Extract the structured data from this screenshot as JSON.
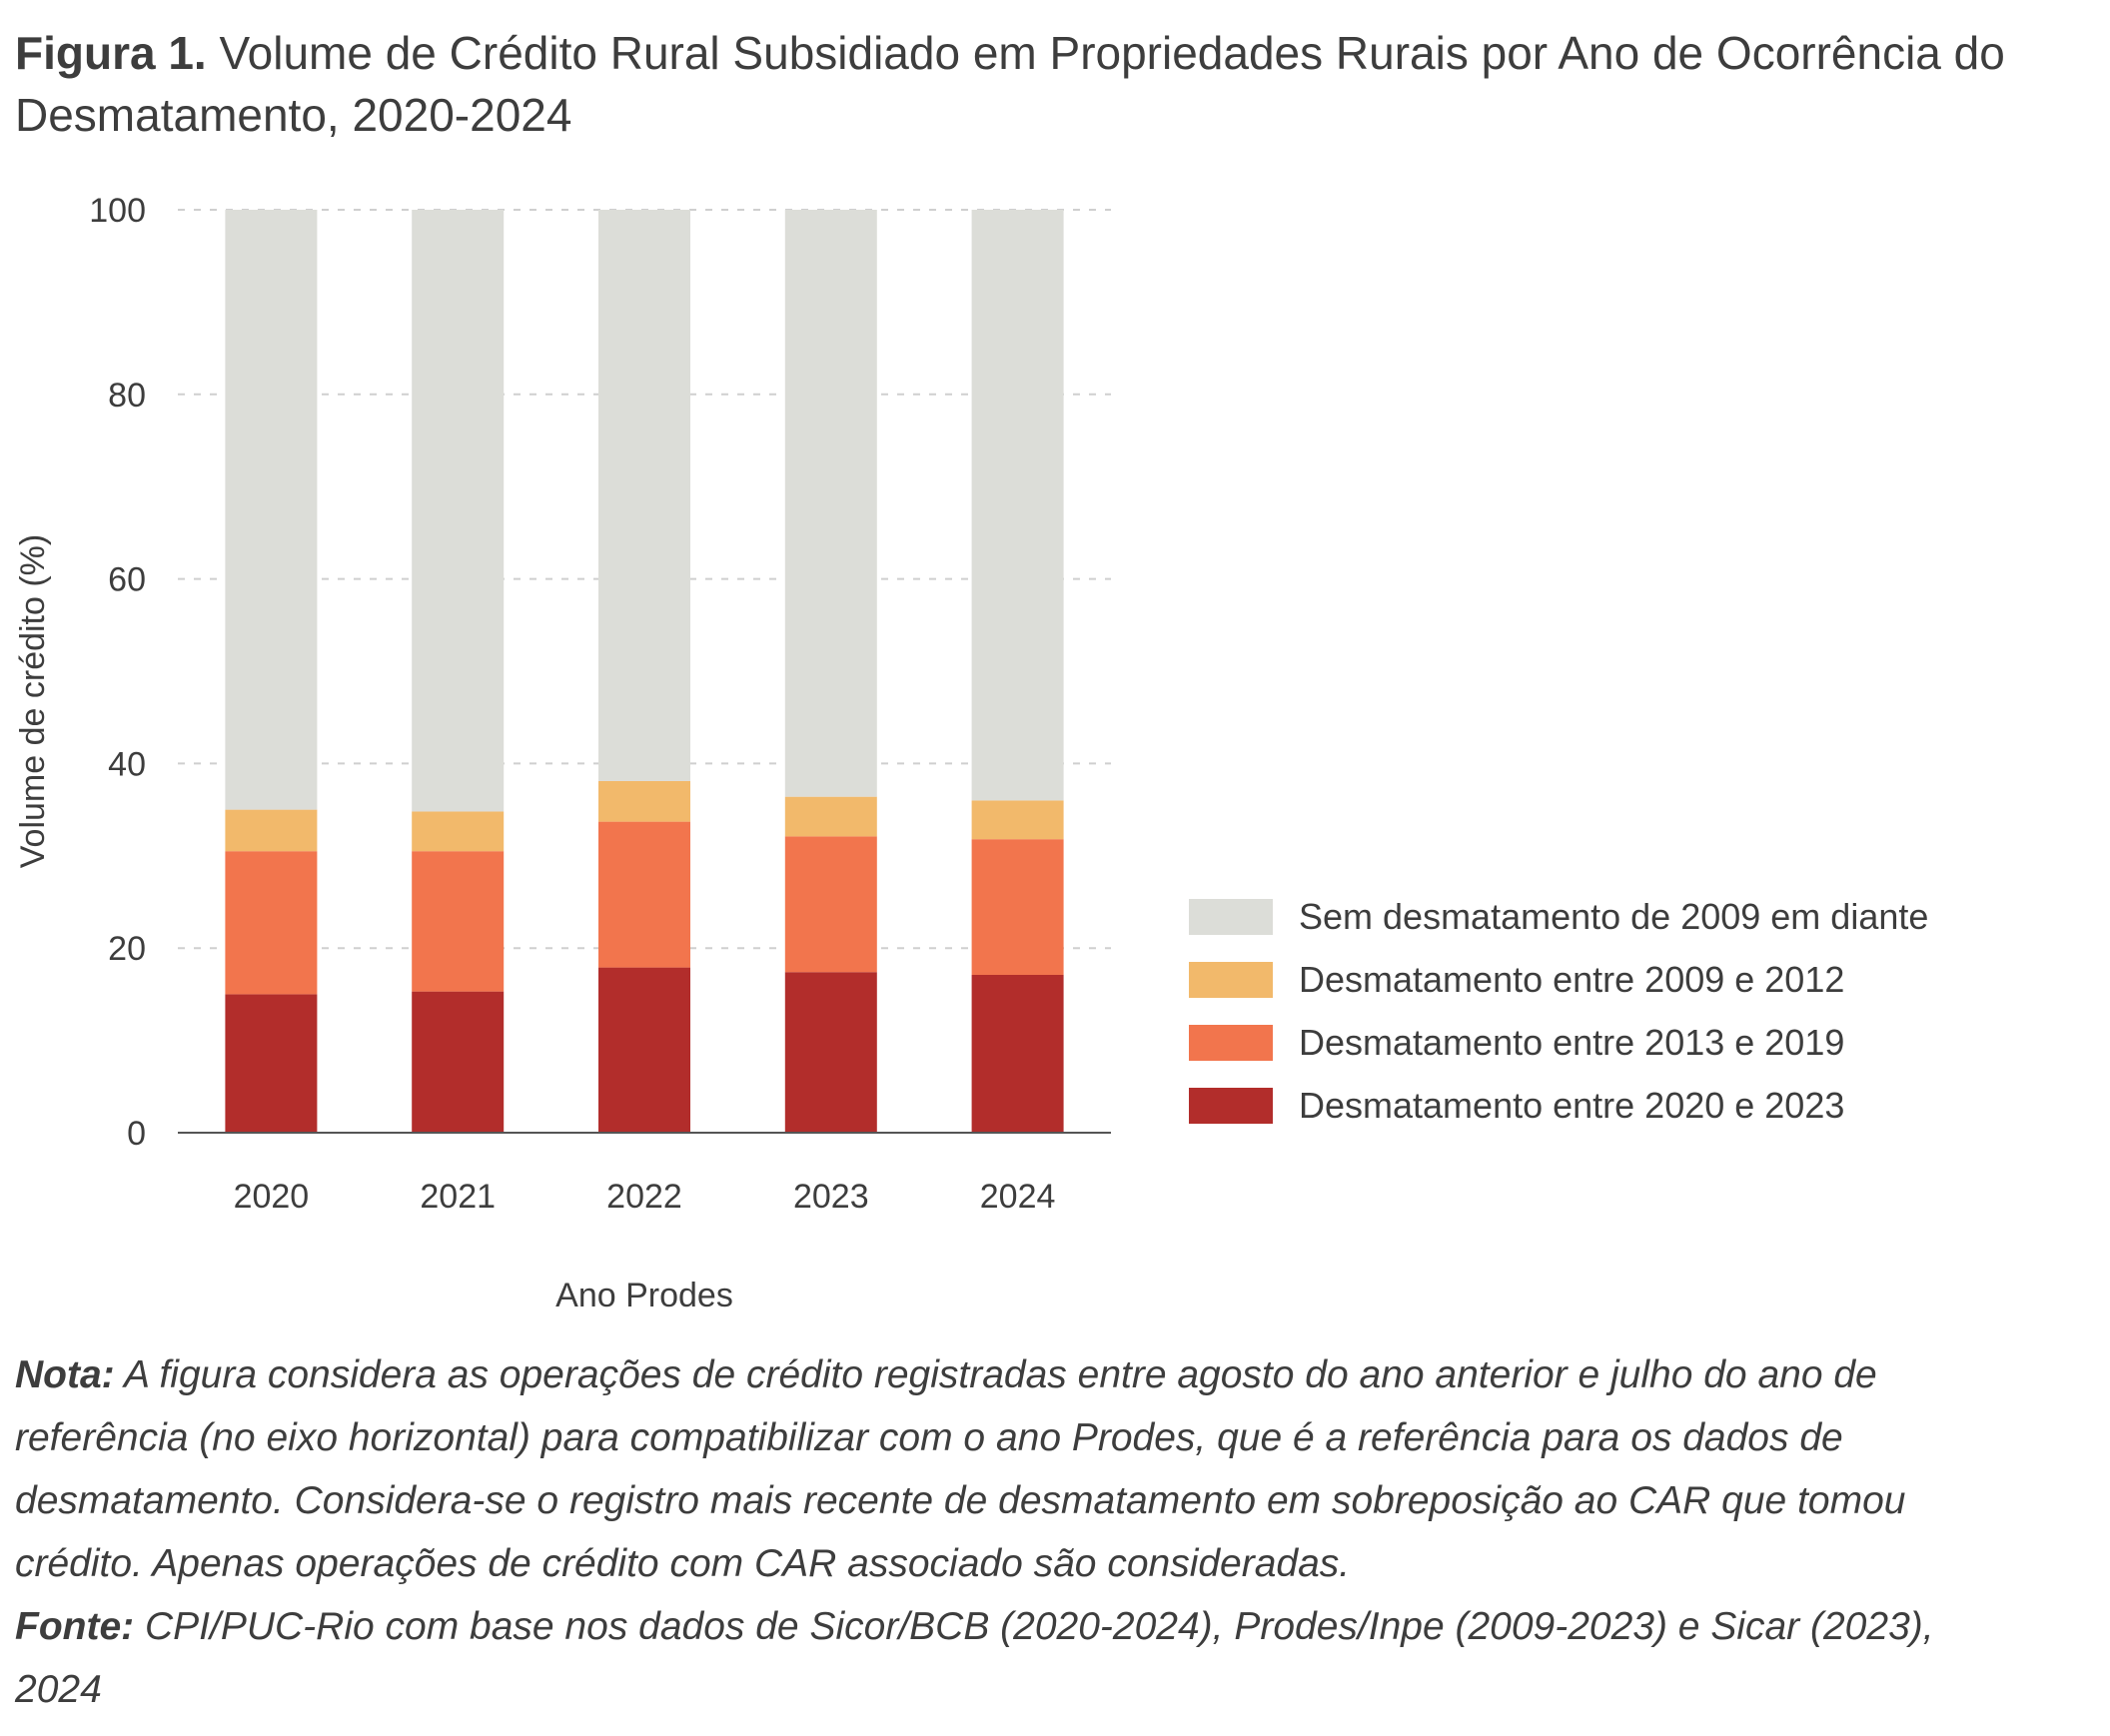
{
  "title": {
    "lead": "Figura 1.",
    "text": "Volume de Crédito Rural Subsidiado em Propriedades Rurais por Ano de Ocorrência do Desmatamento, 2020-2024"
  },
  "chart_data": {
    "type": "bar",
    "stacked": true,
    "categories": [
      "2020",
      "2021",
      "2022",
      "2023",
      "2024"
    ],
    "series": [
      {
        "name": "Desmatamento entre 2020 e 2023",
        "color": "#b22d2b",
        "values": [
          15.0,
          15.3,
          17.9,
          17.4,
          17.1
        ]
      },
      {
        "name": "Desmatamento entre 2013 e 2019",
        "color": "#f2754d",
        "values": [
          15.5,
          15.2,
          15.8,
          14.7,
          14.7
        ]
      },
      {
        "name": "Desmatamento entre 2009 e 2012",
        "color": "#f2b96b",
        "values": [
          4.5,
          4.3,
          4.4,
          4.3,
          4.2
        ]
      },
      {
        "name": "Sem desmatamento de 2009 em diante",
        "color": "#dcddd8",
        "values": [
          65.0,
          65.2,
          61.9,
          63.6,
          64.0
        ]
      }
    ],
    "xlabel": "Ano Prodes",
    "ylabel": "Volume de crédito (%)",
    "ylim": [
      0,
      100
    ],
    "yticks": [
      0,
      20,
      40,
      60,
      80,
      100
    ],
    "grid": "horizontal dashed",
    "legend_position": "right"
  },
  "legend": [
    {
      "label": "Sem desmatamento de 2009 em diante",
      "color": "#dcddd8"
    },
    {
      "label": "Desmatamento entre 2009 e 2012",
      "color": "#f2b96b"
    },
    {
      "label": "Desmatamento entre 2013 e 2019",
      "color": "#f2754d"
    },
    {
      "label": "Desmatamento entre 2020 e 2023",
      "color": "#b22d2b"
    }
  ],
  "note": {
    "label": "Nota:",
    "text": "A figura considera as operações de crédito registradas entre agosto do ano anterior e julho do ano de referência (no eixo horizontal) para compatibilizar com o ano Prodes, que é a referência para os dados de desmatamento. Considera-se o registro mais recente de desmatamento em sobreposição ao CAR que tomou crédito. Apenas operações de crédito com CAR associado são consideradas."
  },
  "source": {
    "label": "Fonte:",
    "text": "CPI/PUC-Rio com base nos dados de Sicor/BCB (2020-2024), Prodes/Inpe (2009-2023) e Sicar (2023), 2024"
  }
}
